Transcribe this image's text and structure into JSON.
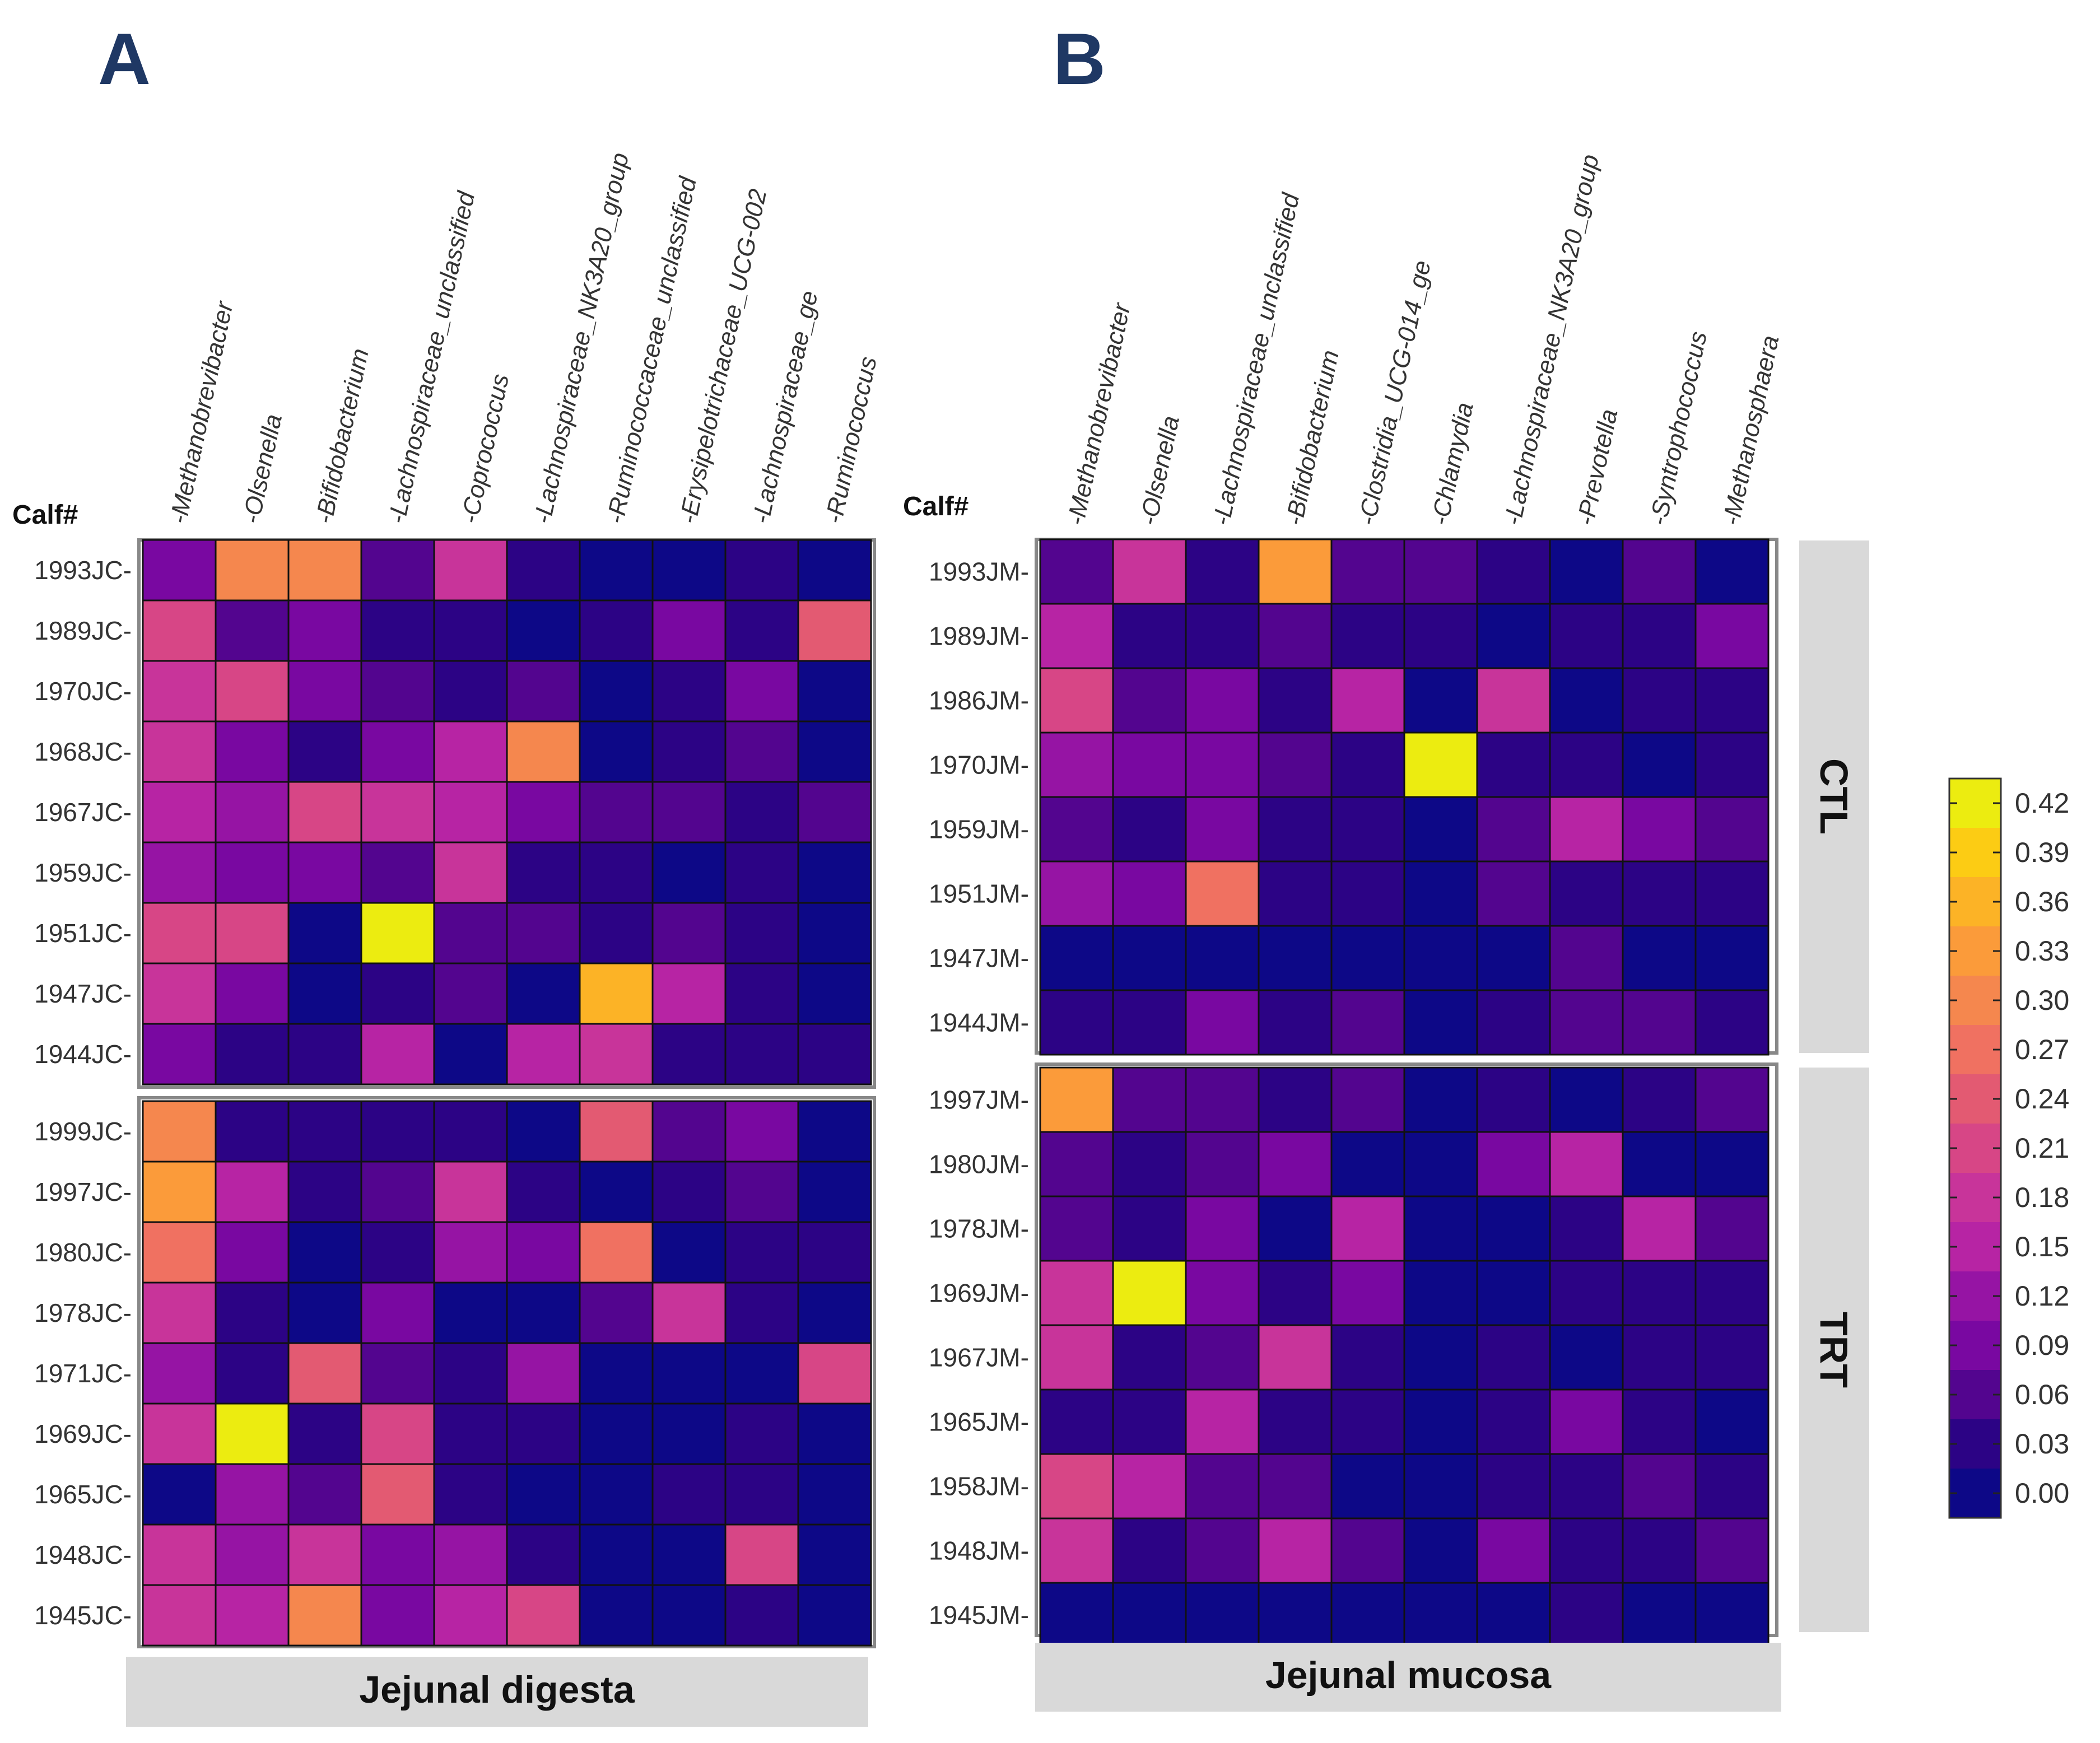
{
  "panels": {
    "a": {
      "letter": "A",
      "strip_label": "Jejunal digesta",
      "calf_header": "Calf#"
    },
    "b": {
      "letter": "B",
      "strip_label": "Jejunal mucosa",
      "calf_header": "Calf#"
    }
  },
  "facets": {
    "ctl": "CTL",
    "trt": "TRT"
  },
  "legend": {
    "ticks": [
      "0.42",
      "0.39",
      "0.36",
      "0.33",
      "0.30",
      "0.27",
      "0.24",
      "0.21",
      "0.18",
      "0.15",
      "0.12",
      "0.09",
      "0.06",
      "0.03",
      "0.00"
    ],
    "colors": [
      "#ecec10",
      "#fccc14",
      "#fcb326",
      "#fb9b3a",
      "#f5874e",
      "#f07161",
      "#e35a72",
      "#d74686",
      "#c8349a",
      "#b724a4",
      "#9614a4",
      "#7908a1",
      "#53058f",
      "#2c0385",
      "#0d0887"
    ]
  },
  "chart_data": [
    {
      "type": "heatmap",
      "title": "Jejunal digesta",
      "ylabel": "Calf#",
      "value_range": [
        0,
        0.42
      ],
      "columns": [
        "Methanobrevibacter",
        "Olsenella",
        "Bifidobacterium",
        "Lachnospiraceae_unclassified",
        "Coprococcus",
        "Lachnospiraceae_NK3A20_group",
        "Ruminococcaceae_unclassified",
        "Erysipelotrichaceae_UCG-002",
        "Lachnospiraceae_ge",
        "Ruminococcus"
      ],
      "groups": [
        {
          "name": "CTL",
          "rows": [
            "1993JC",
            "1989JC",
            "1970JC",
            "1968JC",
            "1967JC",
            "1959JC",
            "1951JC",
            "1947JC",
            "1944JC"
          ],
          "values": [
            [
              0.1,
              0.3,
              0.31,
              0.06,
              0.18,
              0.03,
              0.0,
              0.0,
              0.02,
              0.0
            ],
            [
              0.2,
              0.06,
              0.1,
              0.04,
              0.04,
              0.01,
              0.02,
              0.1,
              0.04,
              0.24
            ],
            [
              0.18,
              0.2,
              0.08,
              0.05,
              0.03,
              0.06,
              0.01,
              0.04,
              0.09,
              0.0
            ],
            [
              0.18,
              0.09,
              0.04,
              0.1,
              0.15,
              0.3,
              0.0,
              0.02,
              0.06,
              0.0
            ],
            [
              0.16,
              0.12,
              0.21,
              0.18,
              0.14,
              0.08,
              0.05,
              0.07,
              0.04,
              0.07
            ],
            [
              0.12,
              0.09,
              0.09,
              0.06,
              0.18,
              0.04,
              0.02,
              0.0,
              0.04,
              0.01
            ],
            [
              0.2,
              0.21,
              0.01,
              0.42,
              0.05,
              0.07,
              0.03,
              0.05,
              0.04,
              0.0
            ],
            [
              0.17,
              0.1,
              0.0,
              0.03,
              0.06,
              0.0,
              0.36,
              0.15,
              0.02,
              0.01
            ],
            [
              0.09,
              0.02,
              0.03,
              0.14,
              0.0,
              0.15,
              0.18,
              0.03,
              0.02,
              0.03
            ]
          ]
        },
        {
          "name": "TRT",
          "rows": [
            "1999JC",
            "1997JC",
            "1980JC",
            "1978JC",
            "1971JC",
            "1969JC",
            "1965JC",
            "1948JC",
            "1945JC"
          ],
          "values": [
            [
              0.3,
              0.04,
              0.03,
              0.04,
              0.03,
              0.01,
              0.24,
              0.06,
              0.08,
              0.0
            ],
            [
              0.34,
              0.14,
              0.04,
              0.06,
              0.17,
              0.04,
              0.0,
              0.02,
              0.06,
              0.01
            ],
            [
              0.26,
              0.1,
              0.01,
              0.03,
              0.11,
              0.09,
              0.27,
              0.01,
              0.02,
              0.02
            ],
            [
              0.18,
              0.03,
              0.01,
              0.09,
              0.01,
              0.01,
              0.07,
              0.17,
              0.04,
              0.01
            ],
            [
              0.11,
              0.04,
              0.24,
              0.05,
              0.02,
              0.11,
              0.0,
              0.0,
              0.01,
              0.21
            ],
            [
              0.17,
              0.42,
              0.03,
              0.22,
              0.04,
              0.03,
              0.01,
              0.01,
              0.02,
              0.0
            ],
            [
              0.0,
              0.13,
              0.07,
              0.25,
              0.04,
              0.0,
              0.01,
              0.04,
              0.02,
              0.01
            ],
            [
              0.19,
              0.12,
              0.18,
              0.09,
              0.11,
              0.04,
              0.0,
              0.01,
              0.21,
              0.0
            ],
            [
              0.19,
              0.16,
              0.3,
              0.09,
              0.14,
              0.22,
              0.0,
              0.0,
              0.03,
              0.01
            ]
          ]
        }
      ]
    },
    {
      "type": "heatmap",
      "title": "Jejunal mucosa",
      "ylabel": "Calf#",
      "value_range": [
        0,
        0.42
      ],
      "columns": [
        "Methanobrevibacter",
        "Olsenella",
        "Lachnospiraceae_unclassified",
        "Bifidobacterium",
        "Clostridia_UCG-014_ge",
        "Chlamydia",
        "Lachnospiraceae_NK3A20_group",
        "Prevotella",
        "Syntrophococcus",
        "Methanosphaera"
      ],
      "groups": [
        {
          "name": "CTL",
          "rows": [
            "1993JM",
            "1989JM",
            "1986JM",
            "1970JM",
            "1959JM",
            "1951JM",
            "1947JM",
            "1944JM"
          ],
          "values": [
            [
              0.07,
              0.17,
              0.04,
              0.33,
              0.05,
              0.05,
              0.03,
              0.0,
              0.06,
              0.01
            ],
            [
              0.16,
              0.04,
              0.04,
              0.06,
              0.04,
              0.04,
              0.0,
              0.02,
              0.03,
              0.1
            ],
            [
              0.22,
              0.06,
              0.08,
              0.03,
              0.15,
              0.0,
              0.17,
              0.01,
              0.02,
              0.04
            ],
            [
              0.11,
              0.1,
              0.08,
              0.06,
              0.03,
              0.42,
              0.02,
              0.03,
              0.01,
              0.03
            ],
            [
              0.06,
              0.04,
              0.08,
              0.04,
              0.03,
              0.01,
              0.05,
              0.14,
              0.1,
              0.06
            ],
            [
              0.12,
              0.09,
              0.27,
              0.02,
              0.02,
              0.01,
              0.07,
              0.02,
              0.03,
              0.03
            ],
            [
              0.0,
              0.0,
              0.0,
              0.0,
              0.0,
              0.0,
              0.0,
              0.06,
              0.0,
              0.0
            ],
            [
              0.04,
              0.02,
              0.09,
              0.03,
              0.05,
              0.0,
              0.04,
              0.07,
              0.05,
              0.04
            ]
          ]
        },
        {
          "name": "TRT",
          "rows": [
            "1997JM",
            "1980JM",
            "1978JM",
            "1969JM",
            "1967JM",
            "1965JM",
            "1958JM",
            "1948JM",
            "1945JM"
          ],
          "values": [
            [
              0.33,
              0.06,
              0.05,
              0.04,
              0.06,
              0.0,
              0.04,
              0.0,
              0.03,
              0.07
            ],
            [
              0.05,
              0.04,
              0.06,
              0.09,
              0.01,
              0.01,
              0.09,
              0.16,
              0.01,
              0.01
            ],
            [
              0.06,
              0.03,
              0.08,
              0.0,
              0.14,
              0.0,
              0.01,
              0.02,
              0.14,
              0.07
            ],
            [
              0.17,
              0.42,
              0.08,
              0.04,
              0.1,
              0.0,
              0.01,
              0.02,
              0.02,
              0.02
            ],
            [
              0.17,
              0.03,
              0.07,
              0.17,
              0.04,
              0.01,
              0.02,
              0.01,
              0.03,
              0.03
            ],
            [
              0.03,
              0.04,
              0.16,
              0.04,
              0.02,
              0.0,
              0.02,
              0.1,
              0.03,
              0.01
            ],
            [
              0.22,
              0.15,
              0.05,
              0.06,
              0.01,
              0.0,
              0.02,
              0.03,
              0.05,
              0.03
            ],
            [
              0.19,
              0.03,
              0.05,
              0.15,
              0.07,
              0.0,
              0.08,
              0.04,
              0.03,
              0.05
            ],
            [
              0.0,
              0.0,
              0.0,
              0.0,
              0.0,
              0.0,
              0.0,
              0.04,
              0.0,
              0.0
            ]
          ]
        }
      ]
    }
  ]
}
